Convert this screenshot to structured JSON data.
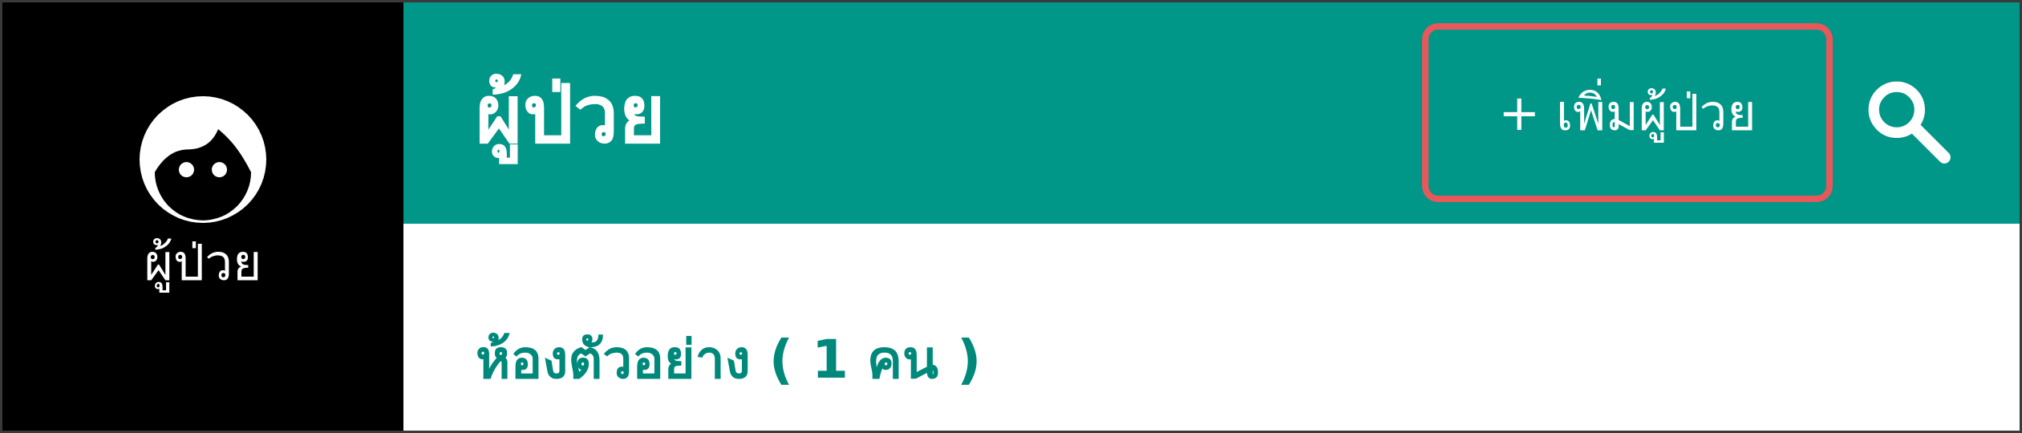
{
  "sidebar": {
    "items": [
      {
        "label": "ผู้ป่วย",
        "icon": "face-icon"
      }
    ]
  },
  "header": {
    "title": "ผู้ป่วย",
    "add_button_label": "+ เพิ่มผู้ป่วย",
    "search_icon": "search-icon"
  },
  "content": {
    "section_title": "ห้องตัวอย่าง ( 1 คน )"
  },
  "colors": {
    "primary": "#009688",
    "section_title": "#00897b",
    "sidebar_bg": "#000000",
    "highlight_border": "#e8585a"
  }
}
